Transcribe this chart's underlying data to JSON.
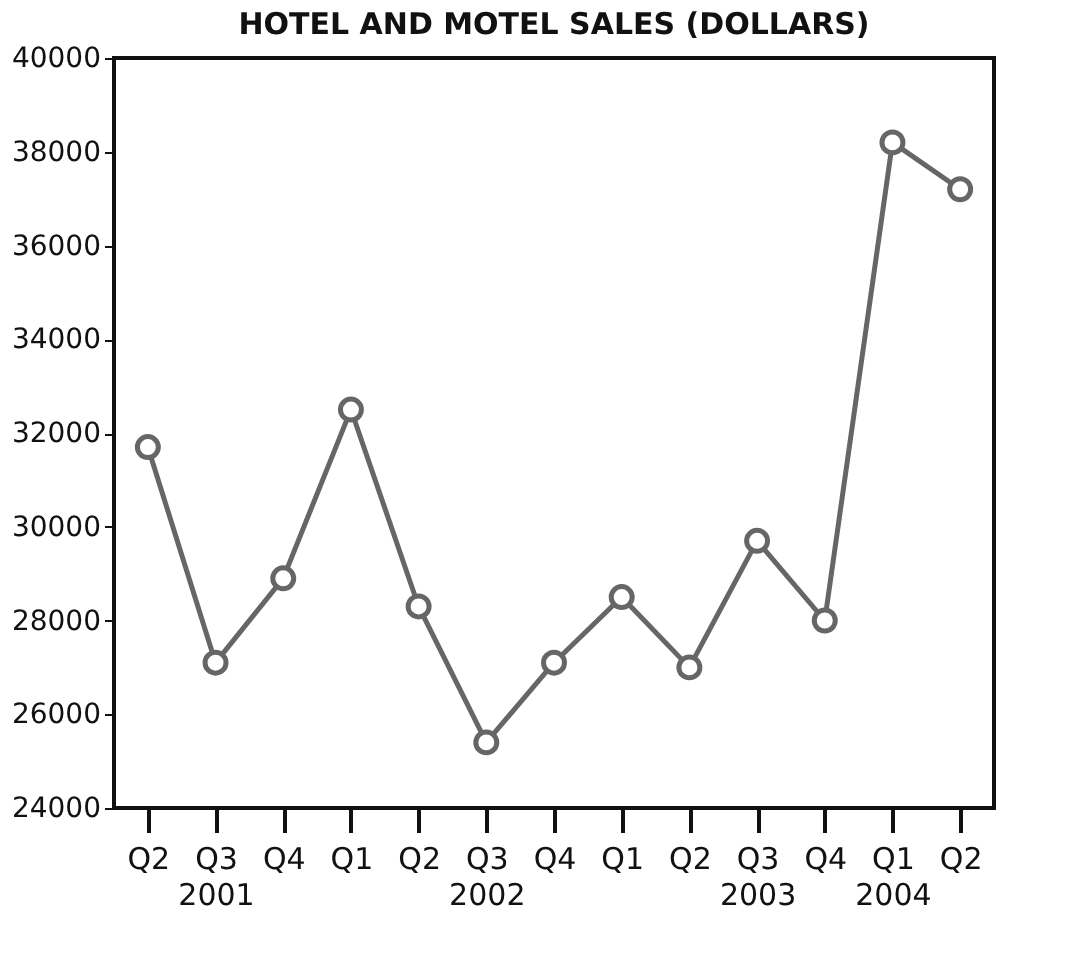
{
  "chart_data": {
    "type": "line",
    "title": "HOTEL AND MOTEL SALES (DOLLARS)",
    "categories": [
      "Q2",
      "Q3\n2001",
      "Q4",
      "Q1",
      "Q2",
      "Q3\n2002",
      "Q4",
      "Q1",
      "Q2",
      "Q3\n2003",
      "Q4",
      "Q1\n2004",
      "Q2"
    ],
    "values": [
      31700,
      27100,
      28900,
      32500,
      28300,
      25400,
      27100,
      28500,
      27000,
      29700,
      28000,
      38200,
      37200
    ],
    "color": "#666666",
    "ylim": [
      24000,
      40000
    ],
    "yticks": [
      24000,
      26000,
      28000,
      30000,
      32000,
      34000,
      36000,
      38000,
      40000
    ],
    "grid": false,
    "marker": "circle",
    "line_style": "solid"
  }
}
